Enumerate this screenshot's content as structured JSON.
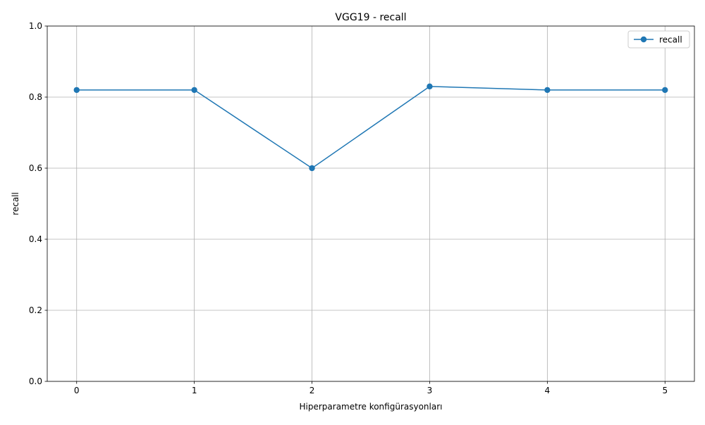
{
  "chart_data": {
    "type": "line",
    "title": "VGG19 - recall",
    "xlabel": "Hiperparametre konfigürasyonları",
    "ylabel": "recall",
    "x": [
      0,
      1,
      2,
      3,
      4,
      5
    ],
    "xticks": [
      "0",
      "1",
      "2",
      "3",
      "4",
      "5"
    ],
    "yticks": [
      "0.0",
      "0.2",
      "0.4",
      "0.6",
      "0.8",
      "1.0"
    ],
    "ytick_values": [
      0,
      0.2,
      0.4,
      0.6,
      0.8,
      1.0
    ],
    "xlim": [
      -0.25,
      5.25
    ],
    "ylim": [
      0,
      1
    ],
    "grid": true,
    "legend_position": "top-right",
    "series": [
      {
        "name": "recall",
        "color": "#1f77b4",
        "marker": "circle",
        "values": [
          0.82,
          0.82,
          0.6,
          0.83,
          0.82,
          0.82
        ]
      }
    ]
  }
}
